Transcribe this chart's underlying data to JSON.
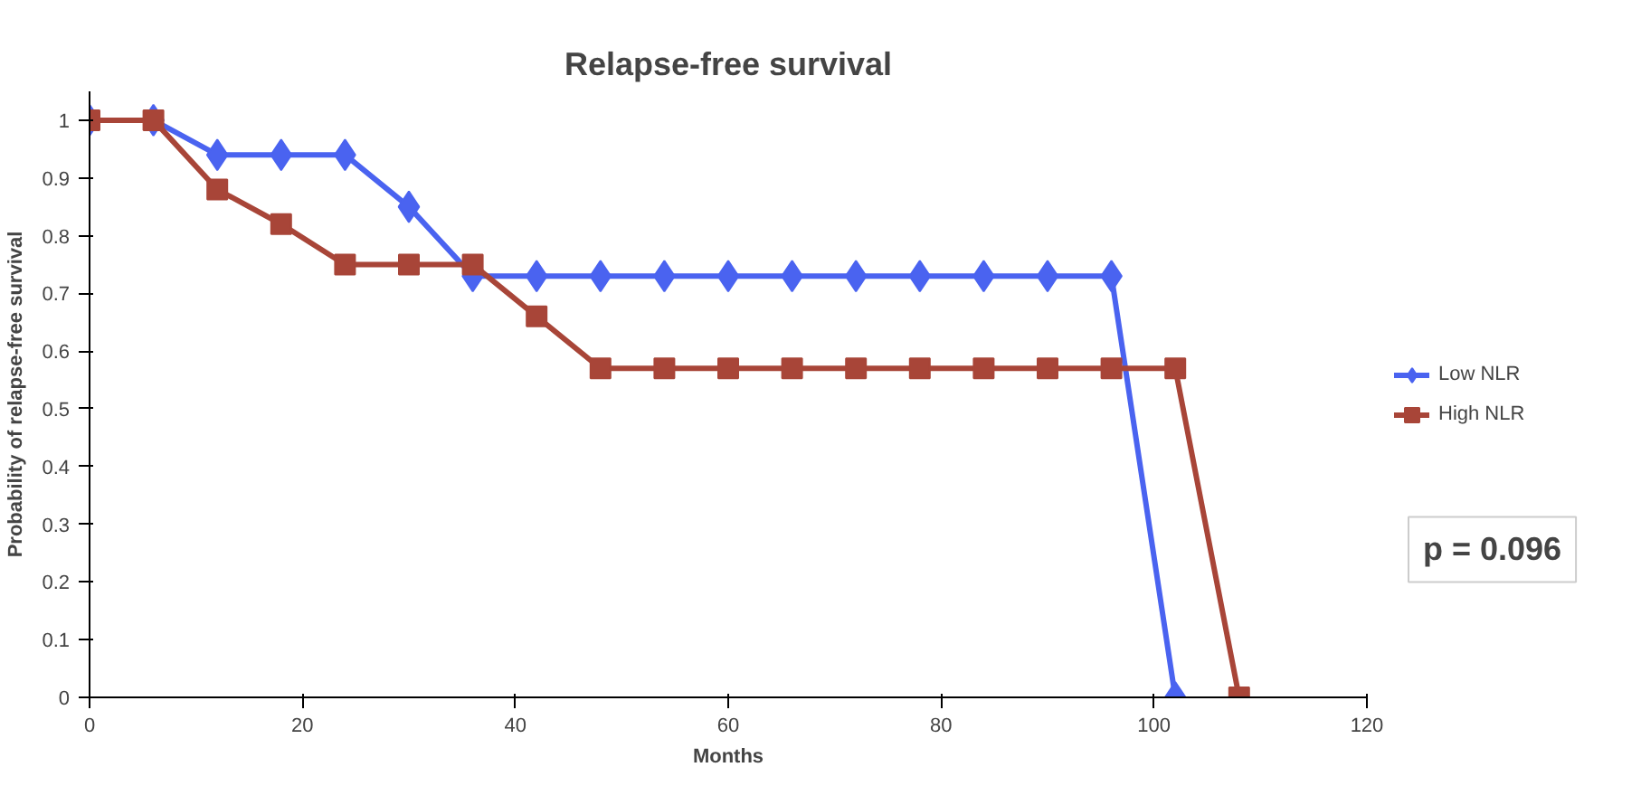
{
  "chart_data": {
    "type": "line",
    "title": "Relapse-free survival",
    "xlabel": "Months",
    "ylabel": "Probability of relapse-free survival",
    "xlim": [
      0,
      120
    ],
    "xticks": [
      0,
      20,
      40,
      60,
      80,
      100,
      120
    ],
    "ylim": [
      0,
      1.05
    ],
    "yticks": [
      0,
      0.1,
      0.2,
      0.3,
      0.4,
      0.5,
      0.6,
      0.7,
      0.8,
      0.9,
      1
    ],
    "grid": false,
    "legend": "right",
    "line_style": "solid",
    "annotations": [
      "p = 0.096"
    ],
    "series": [
      {
        "name": "Low NLR",
        "color": "#4a63f0",
        "marker": "diamond",
        "x": [
          0,
          6,
          12,
          18,
          24,
          30,
          36,
          42,
          48,
          54,
          60,
          66,
          72,
          78,
          84,
          90,
          96,
          102
        ],
        "values": [
          1,
          1,
          0.94,
          0.94,
          0.94,
          0.85,
          0.73,
          0.73,
          0.73,
          0.73,
          0.73,
          0.73,
          0.73,
          0.73,
          0.73,
          0.73,
          0.73,
          0
        ]
      },
      {
        "name": "High NLR",
        "color": "#a84538",
        "marker": "square",
        "x": [
          0,
          6,
          12,
          18,
          24,
          30,
          36,
          42,
          48,
          54,
          60,
          66,
          72,
          78,
          84,
          90,
          96,
          102,
          108
        ],
        "values": [
          1,
          1,
          0.88,
          0.82,
          0.75,
          0.75,
          0.75,
          0.66,
          0.57,
          0.57,
          0.57,
          0.57,
          0.57,
          0.57,
          0.57,
          0.57,
          0.57,
          0.57,
          0
        ]
      }
    ]
  }
}
